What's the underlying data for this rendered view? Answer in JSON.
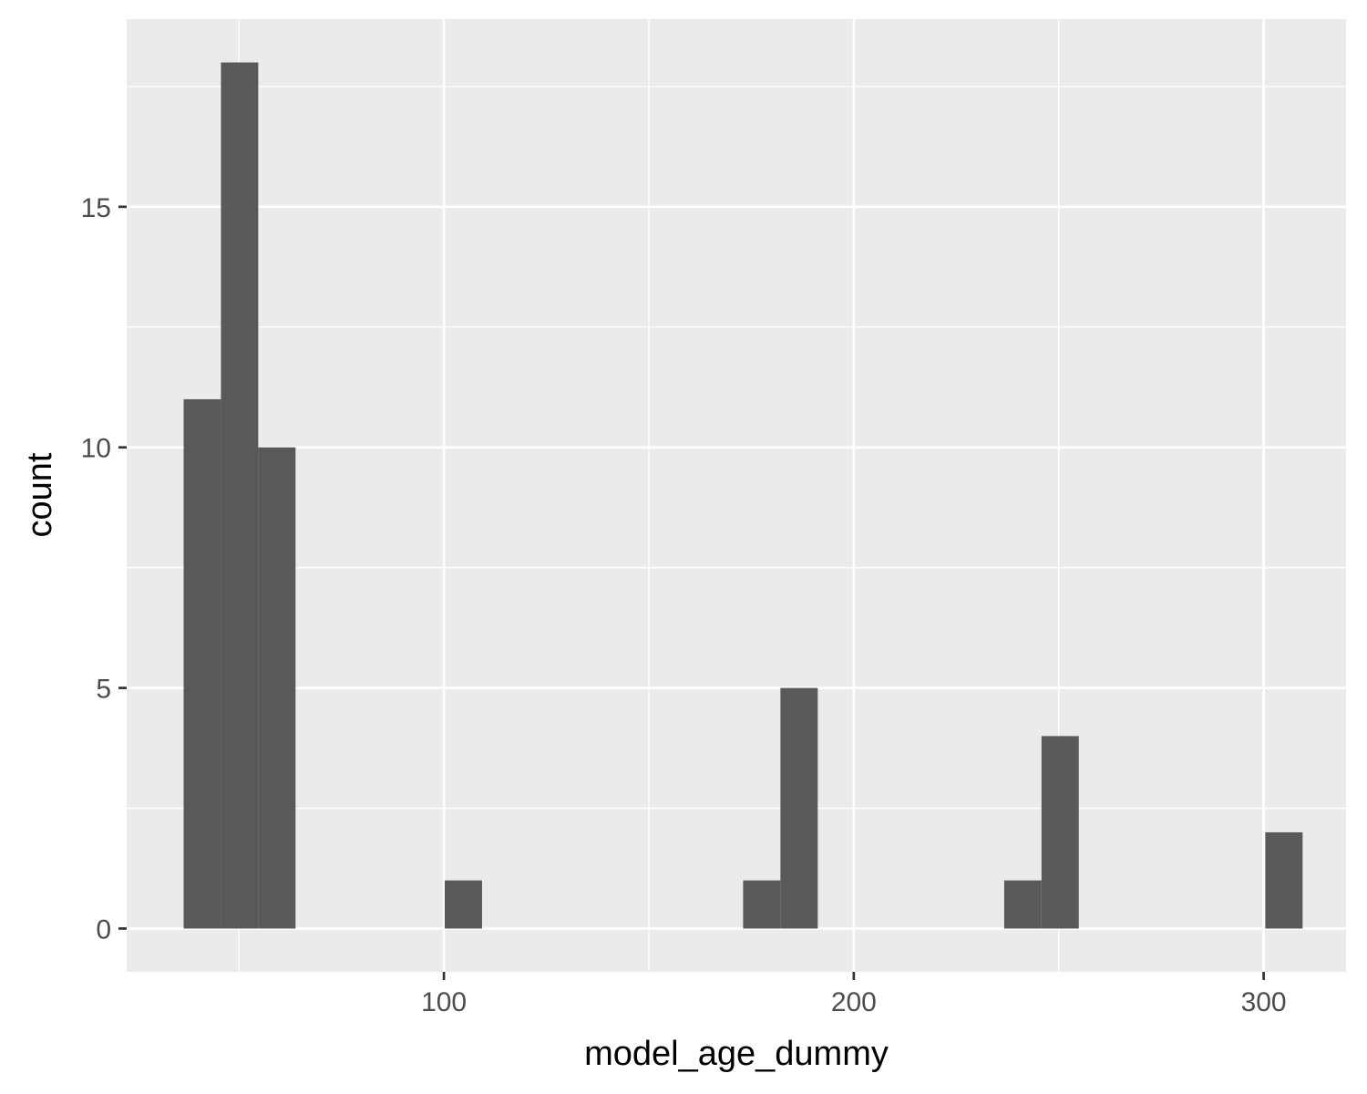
{
  "chart_data": {
    "type": "bar",
    "subtype": "histogram",
    "xlabel": "model_age_dummy",
    "ylabel": "count",
    "xlim": [
      22.6,
      320.1
    ],
    "ylim": [
      -0.9,
      18.9
    ],
    "x_ticks": [
      100,
      200,
      300
    ],
    "y_ticks": [
      0,
      5,
      10,
      15
    ],
    "x_minor_ticks": [
      50,
      150,
      250
    ],
    "y_minor_ticks": [
      2.5,
      7.5,
      12.5,
      17.5
    ],
    "grid": true,
    "bins": [
      {
        "x0": 36.5,
        "x1": 45.6,
        "count": 11
      },
      {
        "x0": 45.6,
        "x1": 54.7,
        "count": 18
      },
      {
        "x0": 54.7,
        "x1": 63.8,
        "count": 10
      },
      {
        "x0": 63.8,
        "x1": 72.9,
        "count": 0
      },
      {
        "x0": 72.9,
        "x1": 82.0,
        "count": 0
      },
      {
        "x0": 82.0,
        "x1": 91.1,
        "count": 0
      },
      {
        "x0": 91.1,
        "x1": 100.2,
        "count": 0
      },
      {
        "x0": 100.2,
        "x1": 109.3,
        "count": 1
      },
      {
        "x0": 109.3,
        "x1": 118.4,
        "count": 0
      },
      {
        "x0": 118.4,
        "x1": 127.5,
        "count": 0
      },
      {
        "x0": 127.5,
        "x1": 136.6,
        "count": 0
      },
      {
        "x0": 136.6,
        "x1": 145.7,
        "count": 0
      },
      {
        "x0": 145.7,
        "x1": 154.8,
        "count": 0
      },
      {
        "x0": 154.8,
        "x1": 163.9,
        "count": 0
      },
      {
        "x0": 163.9,
        "x1": 173.0,
        "count": 0
      },
      {
        "x0": 173.0,
        "x1": 182.1,
        "count": 1
      },
      {
        "x0": 182.1,
        "x1": 191.2,
        "count": 5
      },
      {
        "x0": 191.2,
        "x1": 200.3,
        "count": 0
      },
      {
        "x0": 200.3,
        "x1": 209.4,
        "count": 0
      },
      {
        "x0": 209.4,
        "x1": 218.5,
        "count": 0
      },
      {
        "x0": 218.5,
        "x1": 227.6,
        "count": 0
      },
      {
        "x0": 227.6,
        "x1": 236.7,
        "count": 0
      },
      {
        "x0": 236.7,
        "x1": 245.8,
        "count": 1
      },
      {
        "x0": 245.8,
        "x1": 254.9,
        "count": 4
      },
      {
        "x0": 254.9,
        "x1": 264.0,
        "count": 0
      },
      {
        "x0": 264.0,
        "x1": 273.1,
        "count": 0
      },
      {
        "x0": 273.1,
        "x1": 282.2,
        "count": 0
      },
      {
        "x0": 282.2,
        "x1": 291.3,
        "count": 0
      },
      {
        "x0": 291.3,
        "x1": 300.4,
        "count": 0
      },
      {
        "x0": 300.4,
        "x1": 309.5,
        "count": 2
      }
    ],
    "colors": {
      "bar": "#595959",
      "panel": "#ebebeb",
      "grid": "#ffffff",
      "tick": "#333333"
    }
  }
}
